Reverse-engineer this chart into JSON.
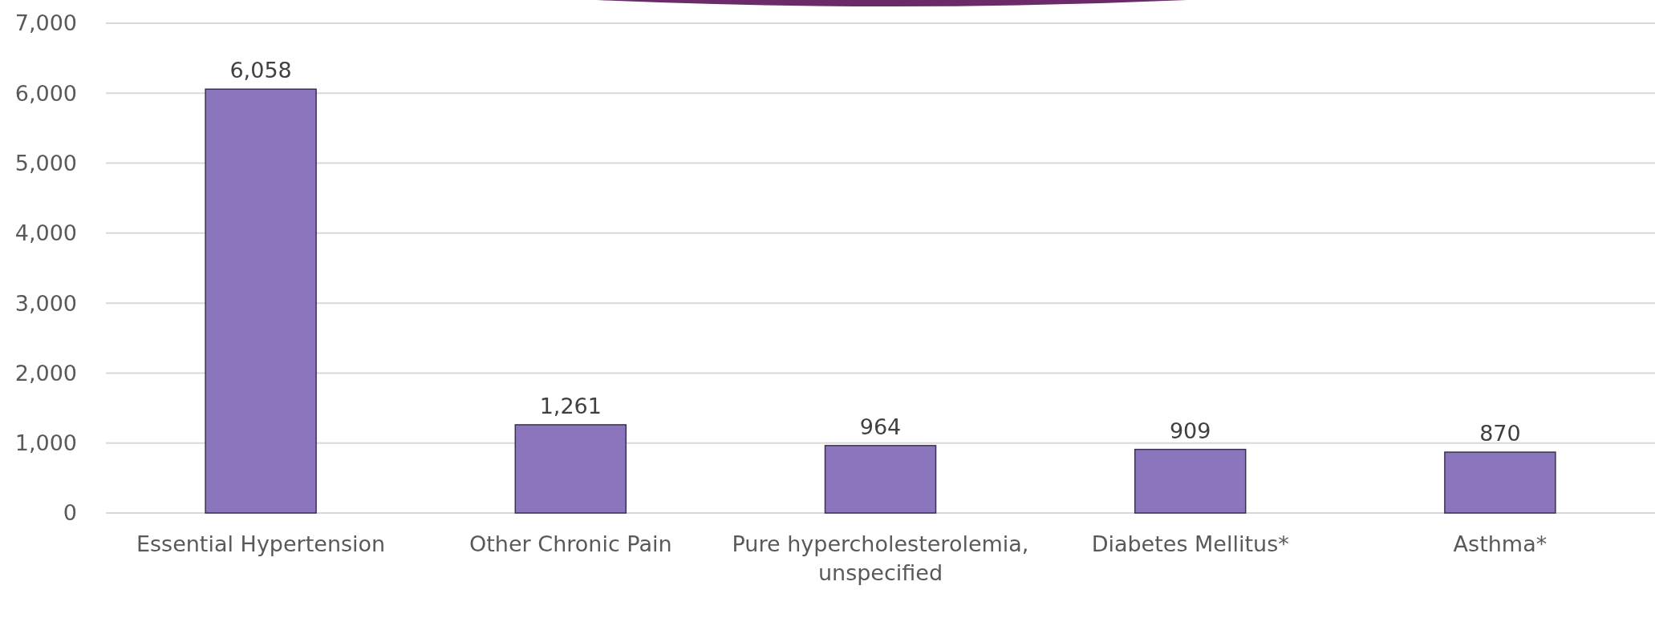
{
  "chart_data": {
    "type": "bar",
    "categories": [
      "Essential Hypertension",
      "Other Chronic Pain",
      "Pure hypercholesterolemia, unspecified",
      "Diabetes Mellitus*",
      "Asthma*"
    ],
    "values": [
      6058,
      1261,
      964,
      909,
      870
    ],
    "color": "#8b76bd",
    "value_labels": [
      "6,058",
      "1,261",
      "964",
      "909",
      "870"
    ],
    "ylim": [
      0,
      7000
    ],
    "yticks": [
      {
        "value": 0,
        "label": "0"
      },
      {
        "value": 1000,
        "label": "1,000"
      },
      {
        "value": 2000,
        "label": "2,000"
      },
      {
        "value": 3000,
        "label": "3,000"
      },
      {
        "value": 4000,
        "label": "4,000"
      },
      {
        "value": 5000,
        "label": "5,000"
      },
      {
        "value": 6000,
        "label": "6,000"
      },
      {
        "value": 7000,
        "label": "7,000"
      }
    ],
    "grid": "y"
  }
}
